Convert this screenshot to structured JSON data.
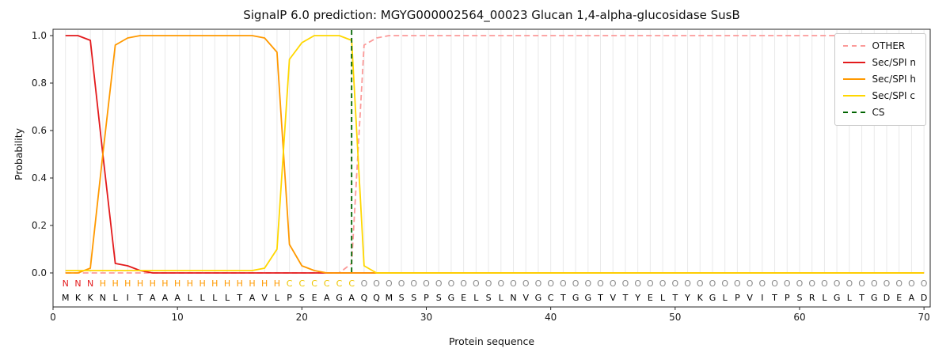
{
  "chart_data": {
    "type": "line",
    "title": "SignalP 6.0 prediction: MGYG000002564_00023 Glucan 1,4-alpha-glucosidase SusB",
    "xlabel": "Protein sequence",
    "ylabel": "Probability",
    "xlim": [
      0,
      70.5
    ],
    "ylim": [
      0.0,
      1.0
    ],
    "xticks": [
      0,
      10,
      20,
      30,
      40,
      50,
      60,
      70
    ],
    "yticks": [
      "0.0",
      "0.2",
      "0.4",
      "0.6",
      "0.8",
      "1.0"
    ],
    "grid": "vertical-per-residue",
    "legend_position": "upper-right",
    "series": [
      {
        "name": "OTHER",
        "color": "#fb9a99",
        "dashed": true,
        "values": [
          0,
          0,
          0,
          0,
          0,
          0,
          0,
          0,
          0,
          0,
          0,
          0,
          0,
          0,
          0,
          0,
          0,
          0,
          0,
          0,
          0,
          0,
          0,
          0.04,
          0.96,
          0.99,
          1,
          1,
          1,
          1,
          1,
          1,
          1,
          1,
          1,
          1,
          1,
          1,
          1,
          1,
          1,
          1,
          1,
          1,
          1,
          1,
          1,
          1,
          1,
          1,
          1,
          1,
          1,
          1,
          1,
          1,
          1,
          1,
          1,
          1,
          1,
          1,
          1,
          1,
          1,
          1,
          1,
          1,
          1,
          1
        ]
      },
      {
        "name": "Sec/SPI n",
        "color": "#e31a1c",
        "dashed": false,
        "values": [
          1,
          1,
          0.98,
          0.5,
          0.04,
          0.03,
          0.01,
          0,
          0,
          0,
          0,
          0,
          0,
          0,
          0,
          0,
          0,
          0,
          0,
          0,
          0,
          0,
          0,
          0,
          0,
          0,
          0,
          0,
          0,
          0,
          0,
          0,
          0,
          0,
          0,
          0,
          0,
          0,
          0,
          0,
          0,
          0,
          0,
          0,
          0,
          0,
          0,
          0,
          0,
          0,
          0,
          0,
          0,
          0,
          0,
          0,
          0,
          0,
          0,
          0,
          0,
          0,
          0,
          0,
          0,
          0,
          0,
          0,
          0,
          0
        ]
      },
      {
        "name": "Sec/SPI h",
        "color": "#ff9900",
        "dashed": false,
        "values": [
          0,
          0,
          0.02,
          0.5,
          0.96,
          0.99,
          1,
          1,
          1,
          1,
          1,
          1,
          1,
          1,
          1,
          1,
          0.99,
          0.93,
          0.12,
          0.03,
          0.01,
          0,
          0,
          0,
          0,
          0,
          0,
          0,
          0,
          0,
          0,
          0,
          0,
          0,
          0,
          0,
          0,
          0,
          0,
          0,
          0,
          0,
          0,
          0,
          0,
          0,
          0,
          0,
          0,
          0,
          0,
          0,
          0,
          0,
          0,
          0,
          0,
          0,
          0,
          0,
          0,
          0,
          0,
          0,
          0,
          0,
          0,
          0,
          0,
          0
        ]
      },
      {
        "name": "Sec/SPI c",
        "color": "#ffd700",
        "dashed": false,
        "values": [
          0.01,
          0.01,
          0.01,
          0.01,
          0.01,
          0.01,
          0.01,
          0.01,
          0.01,
          0.01,
          0.01,
          0.01,
          0.01,
          0.01,
          0.01,
          0.01,
          0.02,
          0.1,
          0.9,
          0.97,
          1,
          1,
          1,
          0.98,
          0.03,
          0,
          0,
          0,
          0,
          0,
          0,
          0,
          0,
          0,
          0,
          0,
          0,
          0,
          0,
          0,
          0,
          0,
          0,
          0,
          0,
          0,
          0,
          0,
          0,
          0,
          0,
          0,
          0,
          0,
          0,
          0,
          0,
          0,
          0,
          0,
          0,
          0,
          0,
          0,
          0,
          0,
          0,
          0,
          0,
          0
        ]
      }
    ],
    "cs_line": {
      "name": "CS",
      "x": 24,
      "color": "#006400",
      "dashed": true
    },
    "sequence": "MKKNLITAAALLLLTAVLPSEAGAQQMSSPSGELSLNVGCTGGTVTYELTYKGLPVITPSRLGLTGDEAD",
    "region_labels": "NNNHHHHHHHHHHHHHHHCCCCCCOOOOOOOOOOOOOOOOOOOOOOOOOOOOOOOOOOOOOOOOOOOOOO",
    "region_colors": {
      "N": "#e31a1c",
      "H": "#ff9900",
      "C": "#eec500",
      "O": "#8a8a8a"
    },
    "legend": [
      {
        "label": "OTHER",
        "color": "#fb9a99",
        "dashed": true
      },
      {
        "label": "Sec/SPI n",
        "color": "#e31a1c",
        "dashed": false
      },
      {
        "label": "Sec/SPI h",
        "color": "#ff9900",
        "dashed": false
      },
      {
        "label": "Sec/SPI c",
        "color": "#ffd700",
        "dashed": false
      },
      {
        "label": "CS",
        "color": "#006400",
        "dashed": true
      }
    ]
  }
}
